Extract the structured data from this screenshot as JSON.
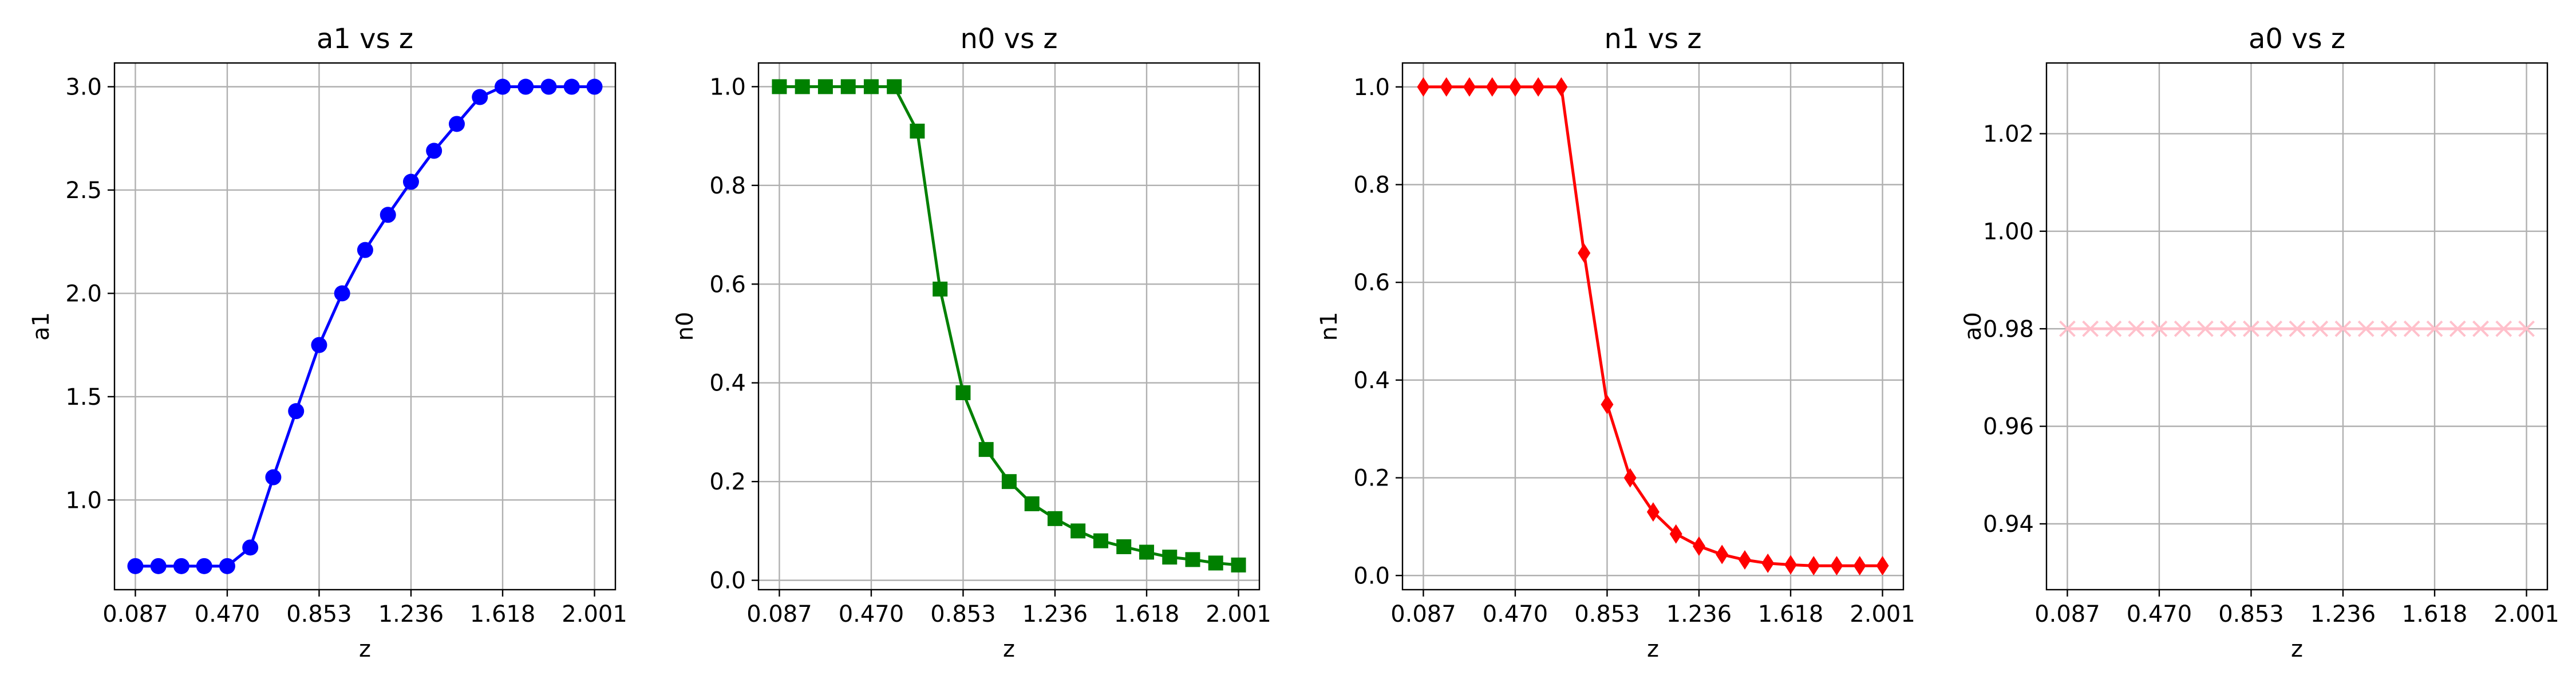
{
  "chart_data": [
    {
      "type": "line",
      "title": "a1 vs z",
      "xlabel": "z",
      "ylabel": "a1",
      "grid": true,
      "xlim": [
        0.0,
        2.088
      ],
      "ylim": [
        0.566,
        3.115
      ],
      "xticks": [
        0.087,
        0.47,
        0.853,
        1.236,
        1.618,
        2.001
      ],
      "xtick_labels": [
        "0.087",
        "0.470",
        "0.853",
        "1.236",
        "1.618",
        "2.001"
      ],
      "yticks": [
        1.0,
        1.5,
        2.0,
        2.5,
        3.0
      ],
      "ytick_labels": [
        "1.0",
        "1.5",
        "2.0",
        "2.5",
        "3.0"
      ],
      "x": [
        0.087,
        0.183,
        0.279,
        0.374,
        0.47,
        0.566,
        0.662,
        0.757,
        0.853,
        0.949,
        1.045,
        1.14,
        1.236,
        1.332,
        1.427,
        1.523,
        1.618,
        1.714,
        1.81,
        1.906,
        2.001
      ],
      "series": [
        {
          "color": "#0000ff",
          "marker": "circle",
          "values": [
            0.68,
            0.68,
            0.68,
            0.68,
            0.68,
            0.77,
            1.11,
            1.43,
            1.75,
            2.0,
            2.21,
            2.38,
            2.54,
            2.69,
            2.82,
            2.95,
            3.0,
            3.0,
            3.0,
            3.0,
            3.0
          ]
        }
      ]
    },
    {
      "type": "line",
      "title": "n0 vs z",
      "xlabel": "z",
      "ylabel": "n0",
      "grid": true,
      "xlim": [
        0.0,
        2.088
      ],
      "ylim": [
        -0.019,
        1.048
      ],
      "xticks": [
        0.087,
        0.47,
        0.853,
        1.236,
        1.618,
        2.001
      ],
      "xtick_labels": [
        "0.087",
        "0.470",
        "0.853",
        "1.236",
        "1.618",
        "2.001"
      ],
      "yticks": [
        0.0,
        0.2,
        0.4,
        0.6,
        0.8,
        1.0
      ],
      "ytick_labels": [
        "0.0",
        "0.2",
        "0.4",
        "0.6",
        "0.8",
        "1.0"
      ],
      "x": [
        0.087,
        0.183,
        0.279,
        0.374,
        0.47,
        0.566,
        0.662,
        0.757,
        0.853,
        0.949,
        1.045,
        1.14,
        1.236,
        1.332,
        1.427,
        1.523,
        1.618,
        1.714,
        1.81,
        1.906,
        2.001
      ],
      "series": [
        {
          "color": "#008000",
          "marker": "square",
          "values": [
            1.0,
            1.0,
            1.0,
            1.0,
            1.0,
            1.0,
            0.91,
            0.59,
            0.38,
            0.265,
            0.2,
            0.155,
            0.125,
            0.1,
            0.08,
            0.068,
            0.057,
            0.047,
            0.042,
            0.035,
            0.031
          ]
        }
      ]
    },
    {
      "type": "line",
      "title": "n1 vs z",
      "xlabel": "z",
      "ylabel": "n1",
      "grid": true,
      "xlim": [
        0.0,
        2.088
      ],
      "ylim": [
        -0.029,
        1.049
      ],
      "xticks": [
        0.087,
        0.47,
        0.853,
        1.236,
        1.618,
        2.001
      ],
      "xtick_labels": [
        "0.087",
        "0.470",
        "0.853",
        "1.236",
        "1.618",
        "2.001"
      ],
      "yticks": [
        0.0,
        0.2,
        0.4,
        0.6,
        0.8,
        1.0
      ],
      "ytick_labels": [
        "0.0",
        "0.2",
        "0.4",
        "0.6",
        "0.8",
        "1.0"
      ],
      "x": [
        0.087,
        0.183,
        0.279,
        0.374,
        0.47,
        0.566,
        0.662,
        0.757,
        0.853,
        0.949,
        1.045,
        1.14,
        1.236,
        1.332,
        1.427,
        1.523,
        1.618,
        1.714,
        1.81,
        1.906,
        2.001
      ],
      "series": [
        {
          "color": "#ff0000",
          "marker": "diamond",
          "values": [
            1.0,
            1.0,
            1.0,
            1.0,
            1.0,
            1.0,
            1.0,
            0.66,
            0.35,
            0.2,
            0.13,
            0.085,
            0.06,
            0.043,
            0.032,
            0.025,
            0.022,
            0.02,
            0.02,
            0.02,
            0.02
          ]
        }
      ]
    },
    {
      "type": "line",
      "title": "a0 vs z",
      "xlabel": "z",
      "ylabel": "a0",
      "grid": true,
      "xlim": [
        0.0,
        2.088
      ],
      "ylim": [
        0.9265,
        1.0345
      ],
      "xticks": [
        0.087,
        0.47,
        0.853,
        1.236,
        1.618,
        2.001
      ],
      "xtick_labels": [
        "0.087",
        "0.470",
        "0.853",
        "1.236",
        "1.618",
        "2.001"
      ],
      "yticks": [
        0.94,
        0.96,
        0.98,
        1.0,
        1.02
      ],
      "ytick_labels": [
        "0.94",
        "0.96",
        "0.98",
        "1.00",
        "1.02"
      ],
      "x": [
        0.087,
        0.183,
        0.279,
        0.374,
        0.47,
        0.566,
        0.662,
        0.757,
        0.853,
        0.949,
        1.045,
        1.14,
        1.236,
        1.332,
        1.427,
        1.523,
        1.618,
        1.714,
        1.81,
        1.906,
        2.001
      ],
      "series": [
        {
          "color": "#ffc0cb",
          "marker": "x",
          "values": [
            0.98,
            0.98,
            0.98,
            0.98,
            0.98,
            0.98,
            0.98,
            0.98,
            0.98,
            0.98,
            0.98,
            0.98,
            0.98,
            0.98,
            0.98,
            0.98,
            0.98,
            0.98,
            0.98,
            0.98,
            0.98
          ]
        }
      ]
    }
  ]
}
